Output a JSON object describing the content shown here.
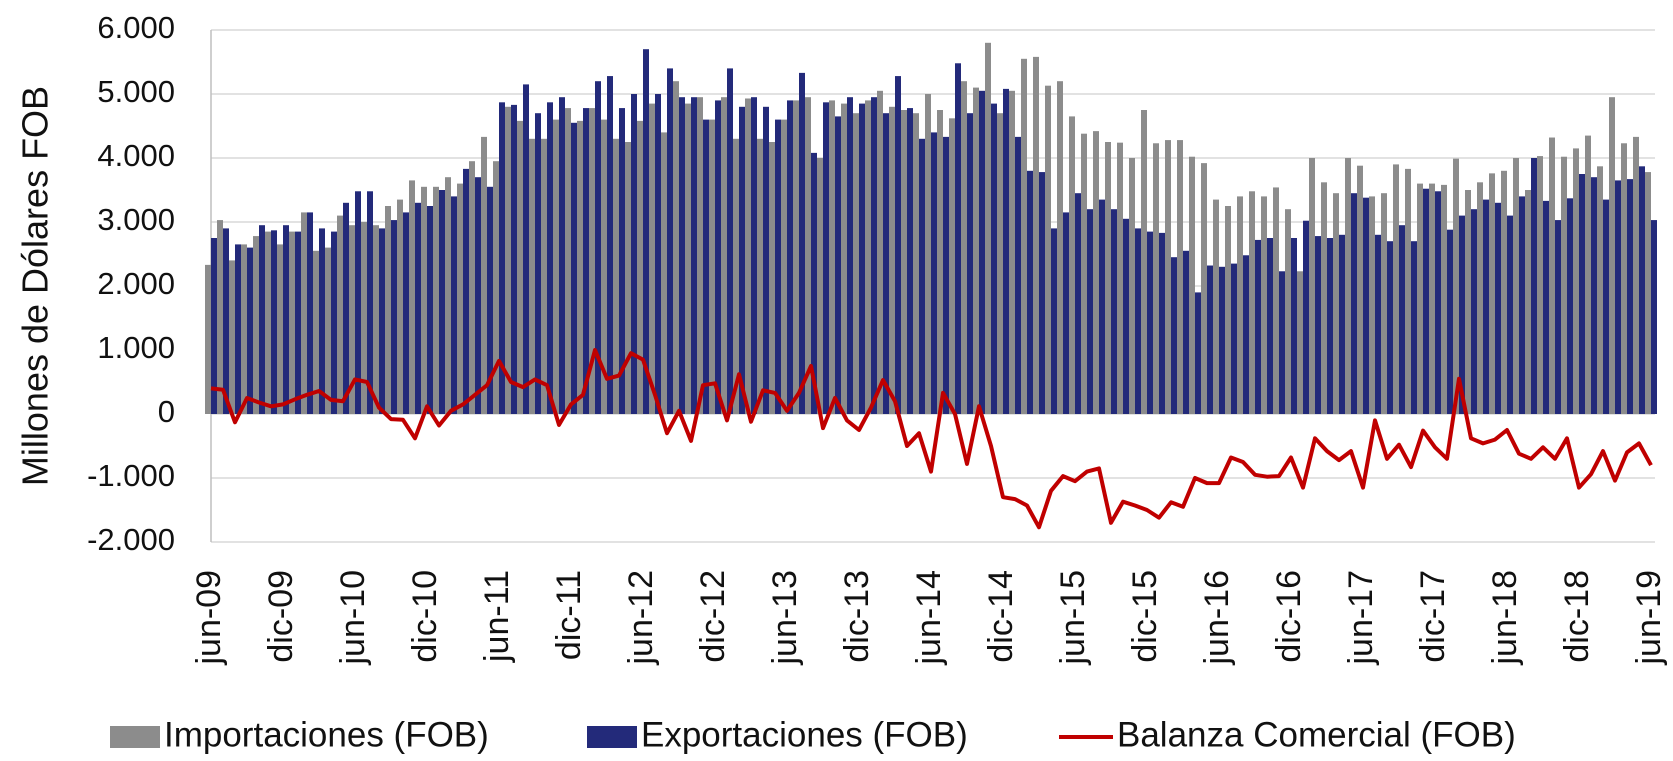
{
  "chart_data": {
    "type": "bar",
    "y_label": "Millones de Dólares FOB",
    "categories": [
      "jun-09",
      null,
      null,
      null,
      null,
      null,
      "dic-09",
      null,
      null,
      null,
      null,
      null,
      "jun-10",
      null,
      null,
      null,
      null,
      null,
      "dic-10",
      null,
      null,
      null,
      null,
      null,
      "jun-11",
      null,
      null,
      null,
      null,
      null,
      "dic-11",
      null,
      null,
      null,
      null,
      null,
      "jun-12",
      null,
      null,
      null,
      null,
      null,
      "dic-12",
      null,
      null,
      null,
      null,
      null,
      "jun-13",
      null,
      null,
      null,
      null,
      null,
      "dic-13",
      null,
      null,
      null,
      null,
      null,
      "jun-14",
      null,
      null,
      null,
      null,
      null,
      "dic-14",
      null,
      null,
      null,
      null,
      null,
      "jun-15",
      null,
      null,
      null,
      null,
      null,
      "dic-15",
      null,
      null,
      null,
      null,
      null,
      "jun-16",
      null,
      null,
      null,
      null,
      null,
      "dic-16",
      null,
      null,
      null,
      null,
      null,
      "jun-17",
      null,
      null,
      null,
      null,
      null,
      "dic-17",
      null,
      null,
      null,
      null,
      null,
      "jun-18",
      null,
      null,
      null,
      null,
      null,
      "dic-18",
      null,
      null,
      null,
      null,
      null,
      "jun-19"
    ],
    "series": [
      {
        "name": "Importaciones (FOB)",
        "type": "bar",
        "color": "#8c8c8c",
        "values": [
          2330,
          3030,
          2400,
          2650,
          2780,
          2850,
          2650,
          2850,
          3150,
          2550,
          2600,
          3100,
          2950,
          3000,
          2950,
          3250,
          3350,
          3650,
          3550,
          3550,
          3700,
          3600,
          3950,
          4330,
          3950,
          4800,
          4580,
          4300,
          4300,
          4600,
          4780,
          4580,
          4780,
          4600,
          4300,
          4250,
          4580,
          4850,
          4400,
          5200,
          4850,
          4950,
          4600,
          4950,
          4300,
          4930,
          4300,
          4250,
          4600,
          4900,
          4950,
          4000,
          4900,
          4850,
          4700,
          4900,
          5050,
          4800,
          4750,
          4700,
          5000,
          4750,
          4620,
          5200,
          5100,
          5800,
          4700,
          5050,
          5550,
          5580,
          5130,
          5200,
          4650,
          4380,
          4420,
          4250,
          4240,
          4000,
          4750,
          4230,
          4280,
          4280,
          4020,
          3920,
          3350,
          3250,
          3400,
          3480,
          3400,
          3540,
          3200,
          2230,
          4000,
          3620,
          3450,
          4000,
          3880,
          3400,
          3450,
          3900,
          3830,
          3600,
          3600,
          3580,
          3990,
          3500,
          3620,
          3760,
          3800,
          4000,
          3500,
          4030,
          4320,
          4020,
          4150,
          4350,
          3870,
          4950,
          4230,
          4330,
          3780
        ]
      },
      {
        "name": "Exportaciones (FOB)",
        "type": "bar",
        "color": "#232a7a",
        "values": [
          2750,
          2900,
          2650,
          2600,
          2950,
          2870,
          2950,
          2850,
          3150,
          2900,
          2850,
          3300,
          3480,
          3480,
          2900,
          3030,
          3150,
          3300,
          3250,
          3500,
          3400,
          3830,
          3700,
          3550,
          4870,
          4830,
          5150,
          4700,
          4870,
          4950,
          4550,
          4780,
          5200,
          5280,
          4780,
          5000,
          5700,
          5000,
          5400,
          4950,
          4950,
          4600,
          4900,
          5400,
          4800,
          4950,
          4800,
          4600,
          4900,
          5330,
          4080,
          4870,
          4650,
          4950,
          4850,
          4950,
          4700,
          5280,
          4780,
          4300,
          4400,
          4330,
          5480,
          4700,
          5050,
          4850,
          5080,
          4330,
          3800,
          3780,
          2900,
          3150,
          3450,
          3200,
          3350,
          3200,
          3050,
          2900,
          2850,
          2830,
          2450,
          2550,
          1900,
          2320,
          2300,
          2350,
          2480,
          2720,
          2750,
          2230,
          2750,
          3020,
          2780,
          2750,
          2800,
          3450,
          3380,
          2800,
          2700,
          2950,
          2700,
          3520,
          3480,
          2880,
          3100,
          3200,
          3350,
          3300,
          3100,
          3400,
          4000,
          3330,
          3030,
          3370,
          3750,
          3700,
          3350,
          3650,
          3670,
          3870,
          3030
        ]
      },
      {
        "name": "Balanza Comercial (FOB)",
        "type": "line",
        "color": "#c00000",
        "values": [
          400,
          380,
          -130,
          250,
          180,
          120,
          150,
          230,
          300,
          360,
          220,
          200,
          540,
          500,
          100,
          -80,
          -90,
          -380,
          120,
          -180,
          50,
          150,
          300,
          450,
          830,
          500,
          420,
          540,
          450,
          -170,
          150,
          300,
          1000,
          550,
          600,
          950,
          850,
          300,
          -300,
          50,
          -420,
          450,
          480,
          -100,
          620,
          -120,
          370,
          330,
          50,
          330,
          750,
          -220,
          250,
          -100,
          -250,
          100,
          530,
          200,
          -500,
          -300,
          -900,
          330,
          0,
          -780,
          120,
          -500,
          -1300,
          -1330,
          -1430,
          -1770,
          -1200,
          -970,
          -1050,
          -900,
          -850,
          -1700,
          -1370,
          -1430,
          -1500,
          -1620,
          -1380,
          -1450,
          -1000,
          -1080,
          -1080,
          -680,
          -750,
          -950,
          -980,
          -970,
          -680,
          -1150,
          -380,
          -580,
          -720,
          -580,
          -1150,
          -100,
          -700,
          -480,
          -830,
          -260,
          -520,
          -700,
          550,
          -380,
          -460,
          -400,
          -250,
          -620,
          -700,
          -520,
          -700,
          -380,
          -1150,
          -940,
          -580,
          -1040,
          -600,
          -460,
          -800
        ]
      }
    ],
    "ylim": [
      -2000,
      6000
    ],
    "yticks": [
      {
        "value": -2000,
        "label": "-2.000"
      },
      {
        "value": -1000,
        "label": "-1.000"
      },
      0,
      {
        "value": 1000,
        "label": "1.000"
      },
      {
        "value": 2000,
        "label": "2.000"
      },
      {
        "value": 3000,
        "label": "3.000"
      },
      {
        "value": 4000,
        "label": "4.000"
      },
      {
        "value": 5000,
        "label": "5.000"
      },
      {
        "value": 6000,
        "label": "6.000"
      }
    ],
    "grid": true,
    "legend": "bottom"
  }
}
